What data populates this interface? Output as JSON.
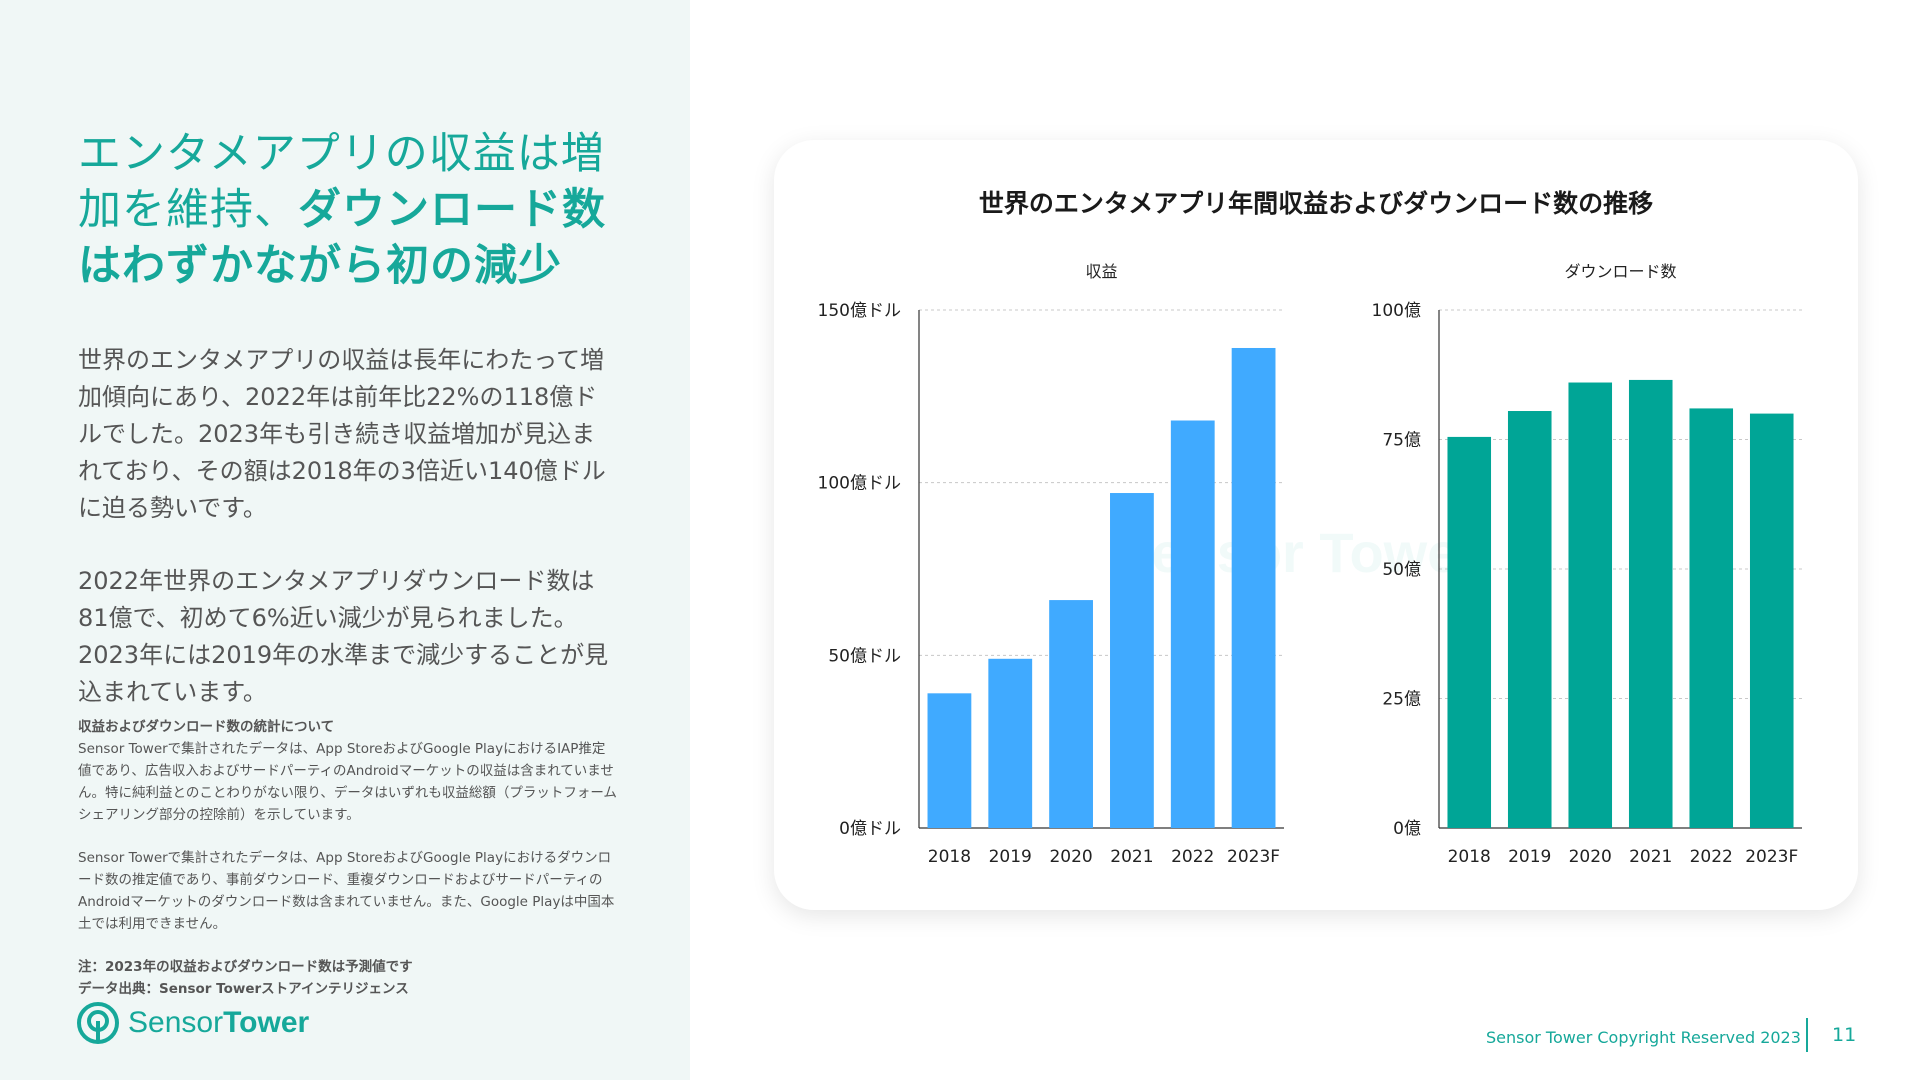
{
  "headline": {
    "line1": "エンタメアプリの収益は増",
    "line2_normal": "加を維持、",
    "line2_bold": "ダウンロード数",
    "line3_bold": "はわずかながら初の減少"
  },
  "paragraph1": "世界のエンタメアプリの収益は長年にわたって増加傾向にあり、2022年は前年比22%の118億ドルでした。2023年も引き続き収益増加が見込まれており、その額は2018年の3倍近い140億ドルに迫る勢いです。",
  "paragraph2": "2022年世界のエンタメアプリダウンロード数は81億で、初めて6%近い減少が見られました。2023年には2019年の水準まで減少することが見込まれています。",
  "notes": {
    "title": "収益およびダウンロード数の統計について",
    "para1": "Sensor Towerで集計されたデータは、App StoreおよびGoogle PlayにおけるIAP推定値であり、広告収入およびサードパーティのAndroidマーケットの収益は含まれていません。特に純利益とのことわりがない限り、データはいずれも収益総額（プラットフォームシェアリング部分の控除前）を示しています。",
    "para2": "Sensor Towerで集計されたデータは、App StoreおよびGoogle Playにおけるダウンロード数の推定値であり、事前ダウンロード、重複ダウンロードおよびサードパーティのAndroidマーケットのダウンロード数は含まれていません。また、Google Playは中国本土では利用できません。",
    "note": "注：2023年の収益およびダウンロード数は予測値です",
    "source": "データ出典：Sensor Towerストアインテリジェンス"
  },
  "logo": {
    "word1": "Sensor",
    "word2": "Tower"
  },
  "watermark": "Sensor Tower",
  "footer": {
    "copyright": "Sensor Tower Copyright Reserved 2023",
    "page": "11"
  },
  "colors": {
    "accent": "#16a89a",
    "revenue_bar": "#40aaff",
    "download_bar": "#00a596"
  },
  "chart_title": "世界のエンタメアプリ年間収益およびダウンロード数の推移",
  "chart_data": [
    {
      "type": "bar",
      "title": "収益",
      "categories": [
        "2018",
        "2019",
        "2020",
        "2021",
        "2022",
        "2023F"
      ],
      "values": [
        39,
        49,
        66,
        97,
        118,
        139
      ],
      "ylim": [
        0,
        150
      ],
      "yticks": [
        0,
        50,
        100,
        150
      ],
      "ytick_labels": [
        "0億ドル",
        "50億ドル",
        "100億ドル",
        "150億ドル"
      ],
      "grid": true
    },
    {
      "type": "bar",
      "title": "ダウンロード数",
      "categories": [
        "2018",
        "2019",
        "2020",
        "2021",
        "2022",
        "2023F"
      ],
      "values": [
        75.5,
        80.5,
        86,
        86.5,
        81,
        80
      ],
      "ylim": [
        0,
        100
      ],
      "yticks": [
        0,
        25,
        50,
        75,
        100
      ],
      "ytick_labels": [
        "0億",
        "25億",
        "50億",
        "75億",
        "100億"
      ],
      "grid": true
    }
  ]
}
